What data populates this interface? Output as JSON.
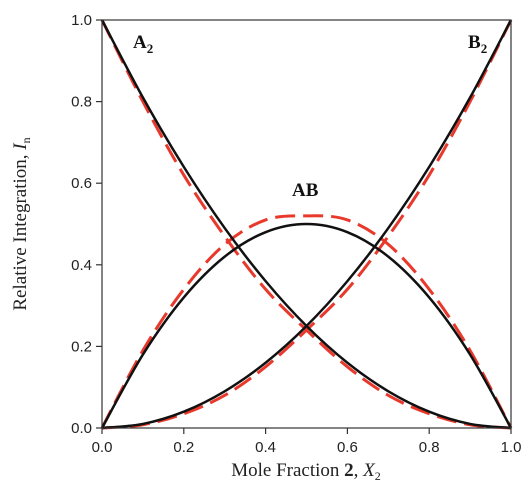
{
  "chart_data": {
    "type": "line",
    "xlabel": {
      "prefix": "Mole Fraction ",
      "bold": "2",
      "comma": ", ",
      "var": "X",
      "sub": "2"
    },
    "ylabel": {
      "prefix": "Relative Integration, ",
      "var": "I",
      "sub": "n"
    },
    "xlim": [
      0,
      1
    ],
    "ylim": [
      0,
      1
    ],
    "xticks": [
      "0.0",
      "0.2",
      "0.4",
      "0.6",
      "0.8",
      "1.0"
    ],
    "yticks": [
      "0.0",
      "0.2",
      "0.4",
      "0.6",
      "0.8",
      "1.0"
    ],
    "x": [
      0,
      0.1,
      0.2,
      0.3,
      0.4,
      0.5,
      0.6,
      0.7,
      0.8,
      0.9,
      1.0
    ],
    "series": [
      {
        "name": "A2",
        "label_main": "A",
        "label_sub": "2",
        "style": "black-solid",
        "values": [
          1,
          0.81,
          0.64,
          0.49,
          0.36,
          0.25,
          0.16,
          0.09,
          0.04,
          0.01,
          0
        ]
      },
      {
        "name": "B2",
        "label_main": "B",
        "label_sub": "2",
        "style": "black-solid",
        "values": [
          0,
          0.01,
          0.04,
          0.09,
          0.16,
          0.25,
          0.36,
          0.49,
          0.64,
          0.81,
          1
        ]
      },
      {
        "name": "AB",
        "label_main": "AB",
        "label_sub": "",
        "style": "black-solid",
        "values": [
          0,
          0.18,
          0.32,
          0.42,
          0.48,
          0.5,
          0.48,
          0.42,
          0.32,
          0.18,
          0
        ]
      },
      {
        "name": "A2 fit",
        "style": "red-dashed",
        "values": [
          1,
          0.8,
          0.62,
          0.47,
          0.34,
          0.24,
          0.15,
          0.08,
          0.035,
          0.008,
          0
        ]
      },
      {
        "name": "B2 fit",
        "style": "red-dashed",
        "values": [
          0,
          0.008,
          0.035,
          0.08,
          0.15,
          0.24,
          0.34,
          0.47,
          0.62,
          0.8,
          1
        ]
      },
      {
        "name": "AB fit",
        "style": "red-dashed",
        "values": [
          0,
          0.19,
          0.34,
          0.45,
          0.51,
          0.52,
          0.51,
          0.45,
          0.34,
          0.19,
          0
        ]
      }
    ],
    "colors": {
      "fit": "#e8392c",
      "model": "#111111"
    },
    "grid": false,
    "legend": "none"
  }
}
